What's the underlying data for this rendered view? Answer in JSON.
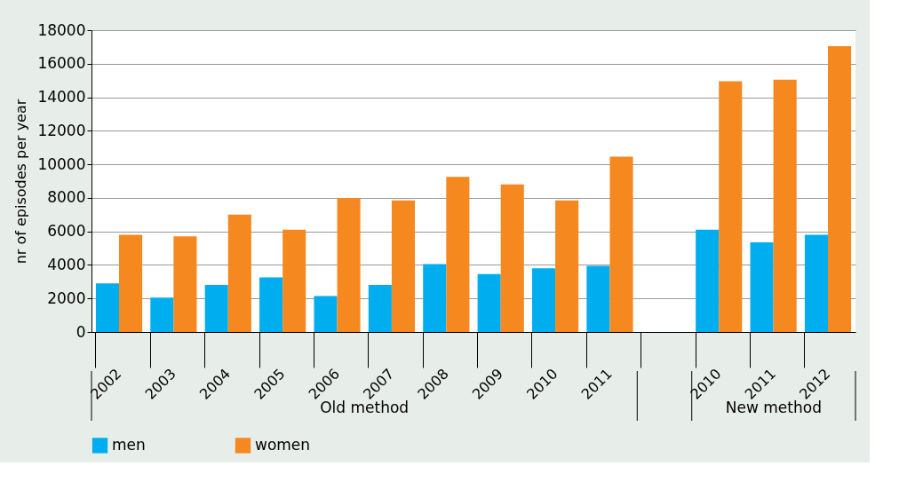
{
  "chart_data": {
    "type": "bar",
    "ylabel": "nr of episodes per year",
    "categories": [
      "2002",
      "2003",
      "2004",
      "2005",
      "2006",
      "2007",
      "2008",
      "2009",
      "2010",
      "2011",
      null,
      "2010",
      "2011",
      "2012"
    ],
    "series": [
      {
        "name": "men",
        "color": "#00aeef",
        "values": [
          2900,
          2050,
          2800,
          3250,
          2150,
          2800,
          4050,
          3450,
          3800,
          3950,
          null,
          6100,
          5350,
          5800
        ]
      },
      {
        "name": "women",
        "color": "#f68820",
        "values": [
          5800,
          5700,
          7000,
          6100,
          8000,
          7850,
          9250,
          8800,
          7850,
          10450,
          null,
          14950,
          15050,
          17050
        ]
      }
    ],
    "ylim": [
      0,
      18000
    ],
    "yticks": [
      0,
      2000,
      4000,
      6000,
      8000,
      10000,
      12000,
      14000,
      16000,
      18000
    ],
    "grid": "y",
    "legend": "bottom left",
    "annotations": [
      "Old method",
      "New method"
    ]
  }
}
